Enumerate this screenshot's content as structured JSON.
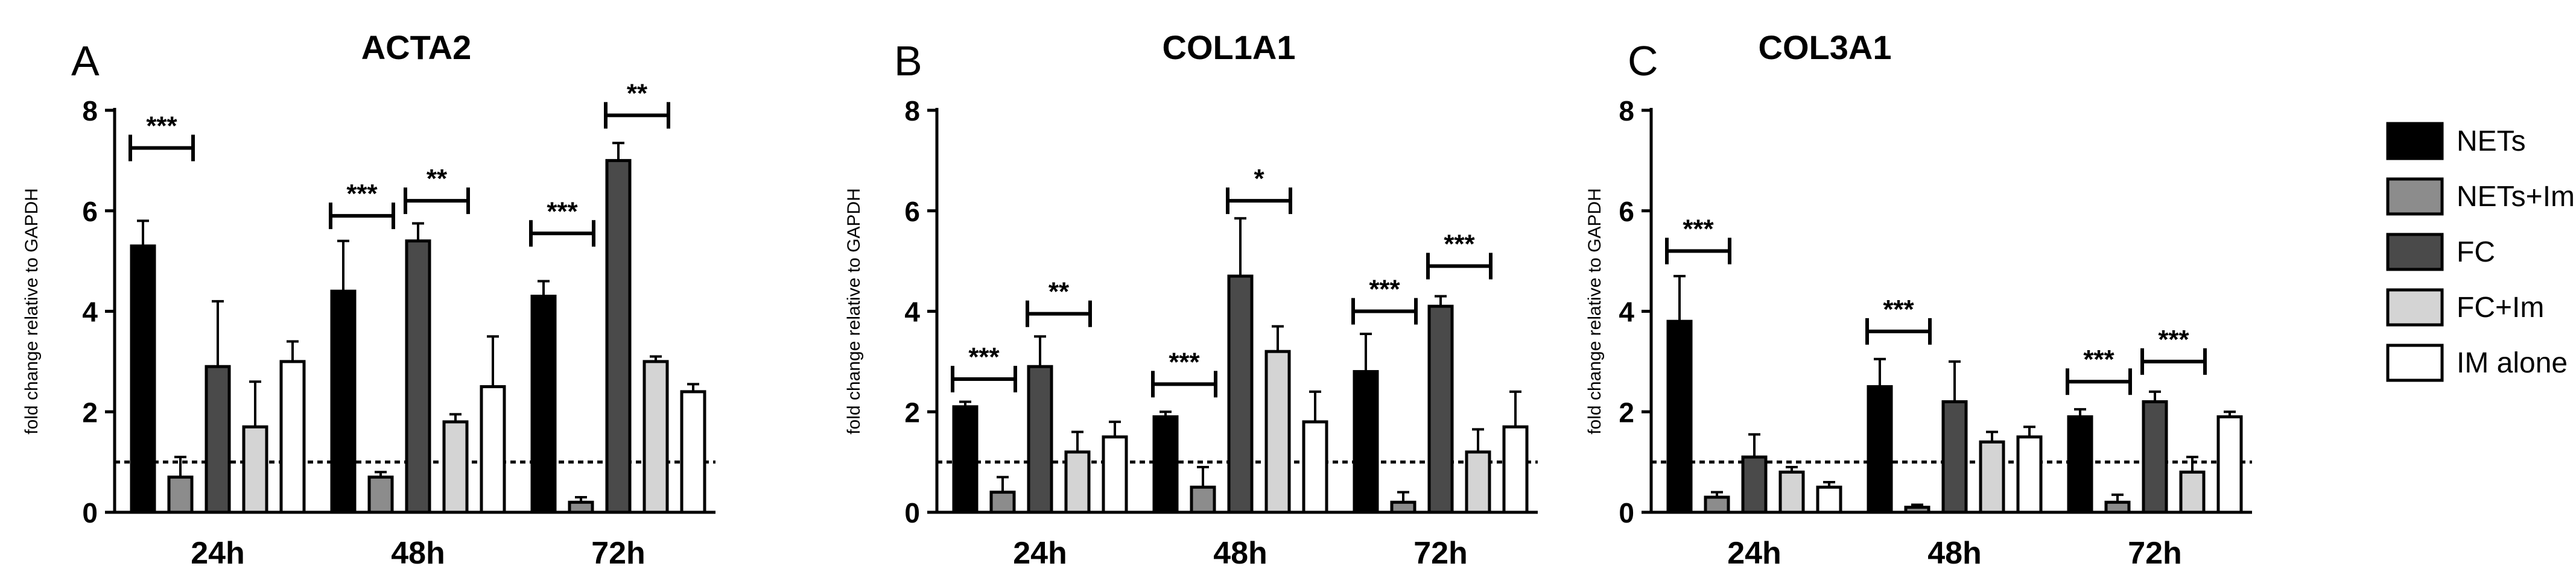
{
  "figure": {
    "legend_placement": "right",
    "legend": [
      {
        "name": "NETs",
        "fill": "#000000"
      },
      {
        "name": "NETs+Im",
        "fill": "#8c8c8c"
      },
      {
        "name": "FC",
        "fill": "#4a4a4a"
      },
      {
        "name": "FC+Im",
        "fill": "#d4d4d4"
      },
      {
        "name": "IM alone",
        "fill": "#ffffff"
      }
    ],
    "reference_line": {
      "y": 1,
      "style": "dotted"
    }
  },
  "chart_data": [
    {
      "type": "bar",
      "panel_label": "A",
      "title": "ACTA2",
      "ylabel": "fold change relative to GAPDH",
      "xlabel": "",
      "ylim": [
        0,
        8
      ],
      "yticks": [
        0,
        2,
        4,
        6,
        8
      ],
      "categories": [
        "24h",
        "48h",
        "72h"
      ],
      "series": [
        {
          "name": "NETs",
          "values": [
            5.3,
            4.4,
            4.3
          ],
          "errors": [
            0.5,
            1.0,
            0.3
          ]
        },
        {
          "name": "NETs+Im",
          "values": [
            0.7,
            0.7,
            0.2
          ],
          "errors": [
            0.4,
            0.1,
            0.1
          ]
        },
        {
          "name": "FC",
          "values": [
            2.9,
            5.4,
            7.0
          ],
          "errors": [
            1.3,
            0.35,
            0.35
          ]
        },
        {
          "name": "FC+Im",
          "values": [
            1.7,
            1.8,
            3.0
          ],
          "errors": [
            0.9,
            0.15,
            0.1
          ]
        },
        {
          "name": "IM alone",
          "values": [
            3.0,
            2.5,
            2.4
          ],
          "errors": [
            0.4,
            1.0,
            0.15
          ]
        }
      ],
      "significance": [
        {
          "category": 0,
          "from": 0,
          "to": 1,
          "label": "***",
          "y": 7.25
        },
        {
          "category": 1,
          "from": 0,
          "to": 1,
          "label": "***",
          "y": 5.9
        },
        {
          "category": 1,
          "from": 2,
          "to": 3,
          "label": "**",
          "y": 6.2
        },
        {
          "category": 2,
          "from": 0,
          "to": 1,
          "label": "***",
          "y": 5.55
        },
        {
          "category": 2,
          "from": 2,
          "to": 3,
          "label": "**",
          "y": 7.9
        }
      ]
    },
    {
      "type": "bar",
      "panel_label": "B",
      "title": "COL1A1",
      "ylabel": "fold change relative to GAPDH",
      "xlabel": "",
      "ylim": [
        0,
        8
      ],
      "yticks": [
        0,
        2,
        4,
        6,
        8
      ],
      "categories": [
        "24h",
        "48h",
        "72h"
      ],
      "series": [
        {
          "name": "NETs",
          "values": [
            2.1,
            1.9,
            2.8
          ],
          "errors": [
            0.1,
            0.1,
            0.75
          ]
        },
        {
          "name": "NETs+Im",
          "values": [
            0.4,
            0.5,
            0.2
          ],
          "errors": [
            0.3,
            0.4,
            0.2
          ]
        },
        {
          "name": "FC",
          "values": [
            2.9,
            4.7,
            4.1
          ],
          "errors": [
            0.6,
            1.15,
            0.2
          ]
        },
        {
          "name": "FC+Im",
          "values": [
            1.2,
            3.2,
            1.2
          ],
          "errors": [
            0.4,
            0.5,
            0.45
          ]
        },
        {
          "name": "IM alone",
          "values": [
            1.5,
            1.8,
            1.7
          ],
          "errors": [
            0.3,
            0.6,
            0.7
          ]
        }
      ],
      "significance": [
        {
          "category": 0,
          "from": 0,
          "to": 1,
          "label": "***",
          "y": 2.65
        },
        {
          "category": 0,
          "from": 2,
          "to": 3,
          "label": "**",
          "y": 3.95
        },
        {
          "category": 1,
          "from": 0,
          "to": 1,
          "label": "***",
          "y": 2.55
        },
        {
          "category": 1,
          "from": 2,
          "to": 3,
          "label": "*",
          "y": 6.2
        },
        {
          "category": 2,
          "from": 0,
          "to": 1,
          "label": "***",
          "y": 4.0
        },
        {
          "category": 2,
          "from": 2,
          "to": 3,
          "label": "***",
          "y": 4.9
        }
      ]
    },
    {
      "type": "bar",
      "panel_label": "C",
      "title": "COL3A1",
      "ylabel": "fold change relative to GAPDH",
      "xlabel": "",
      "ylim": [
        0,
        8
      ],
      "yticks": [
        0,
        2,
        4,
        6,
        8
      ],
      "categories": [
        "24h",
        "48h",
        "72h"
      ],
      "series": [
        {
          "name": "NETs",
          "values": [
            3.8,
            2.5,
            1.9
          ],
          "errors": [
            0.9,
            0.55,
            0.15
          ]
        },
        {
          "name": "NETs+Im",
          "values": [
            0.3,
            0.1,
            0.2
          ],
          "errors": [
            0.1,
            0.05,
            0.15
          ]
        },
        {
          "name": "FC",
          "values": [
            1.1,
            2.2,
            2.2
          ],
          "errors": [
            0.45,
            0.8,
            0.2
          ]
        },
        {
          "name": "FC+Im",
          "values": [
            0.8,
            1.4,
            0.8
          ],
          "errors": [
            0.1,
            0.2,
            0.3
          ]
        },
        {
          "name": "IM alone",
          "values": [
            0.5,
            1.5,
            1.9
          ],
          "errors": [
            0.1,
            0.2,
            0.1
          ]
        }
      ],
      "significance": [
        {
          "category": 0,
          "from": 0,
          "to": 1,
          "label": "***",
          "y": 5.2
        },
        {
          "category": 1,
          "from": 0,
          "to": 1,
          "label": "***",
          "y": 3.6
        },
        {
          "category": 2,
          "from": 0,
          "to": 1,
          "label": "***",
          "y": 2.6
        },
        {
          "category": 2,
          "from": 2,
          "to": 3,
          "label": "***",
          "y": 3.0
        }
      ]
    }
  ]
}
